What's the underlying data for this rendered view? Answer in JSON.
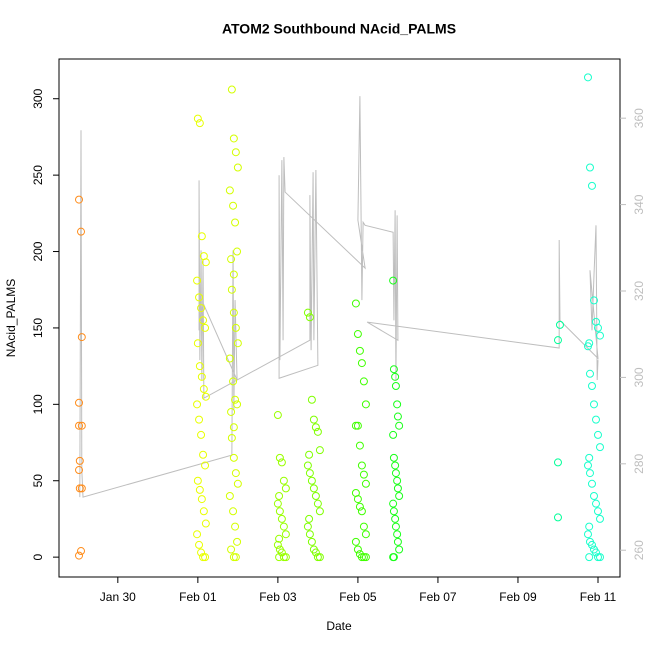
{
  "chart_data": {
    "type": "scatter",
    "title": "ATOM2 Southbound NAcid_PALMS",
    "xlabel": "Date",
    "ylabel": "NAcid_PALMS",
    "xlim": [
      28.53,
      42.55
    ],
    "ylim": [
      -13,
      326
    ],
    "y2lim": [
      253.8,
      373.7
    ],
    "xticks": [
      {
        "value": 30,
        "label": "Jan 30"
      },
      {
        "value": 32,
        "label": "Feb 01"
      },
      {
        "value": 34,
        "label": "Feb 03"
      },
      {
        "value": 36,
        "label": "Feb 05"
      },
      {
        "value": 38,
        "label": "Feb 07"
      },
      {
        "value": 40,
        "label": "Feb 09"
      },
      {
        "value": 42,
        "label": "Feb 11"
      }
    ],
    "yticks": [
      0,
      50,
      100,
      150,
      200,
      250,
      300
    ],
    "y2ticks": [
      260,
      280,
      300,
      320,
      340,
      360
    ],
    "y2color": "#bebebe",
    "series": [
      {
        "type": "line",
        "axis": "y2",
        "color": "#bebebe",
        "x": [
          29.05,
          29.08,
          29.1,
          29.13,
          32.85,
          32.88,
          32.9,
          32.93,
          32.98,
          32.13,
          32.03,
          32.03,
          32.05,
          32.08,
          32.1,
          32.13,
          32.15,
          34.8,
          34.8,
          34.83,
          34.88,
          34.9,
          34.95,
          35.0,
          34.03,
          34.03,
          34.05,
          34.1,
          34.13,
          34.15,
          34.18,
          36.18,
          36.0,
          36.05,
          36.1,
          36.13,
          36.18,
          36.88,
          36.9,
          36.93,
          36.95,
          36.98,
          37.0,
          36.23,
          41.03,
          41.03,
          41.05,
          42.0,
          41.8,
          41.85,
          41.9,
          41.95,
          41.98,
          42.0
        ],
        "values": [
          272.3,
          357.2,
          278.5,
          272.3,
          282.0,
          329.4,
          292.4,
          317.9,
          299.4,
          317.2,
          310.9,
          345.6,
          304.0,
          329.4,
          299.4,
          327.1,
          295.2,
          308.6,
          342.2,
          306.3,
          347.5,
          308.6,
          348.0,
          302.8,
          299.8,
          346.8,
          304.0,
          350.3,
          308.6,
          351.0,
          342.9,
          325.3,
          336.4,
          365.1,
          317.9,
          335.9,
          335.2,
          333.6,
          313.2,
          338.7,
          299.4,
          337.5,
          308.6,
          312.8,
          306.8,
          331.8,
          313.2,
          304.4,
          324.8,
          310.9,
          323.7,
          335.2,
          299.4,
          304.0
        ]
      },
      {
        "type": "scatter",
        "color": "#ff8c1a",
        "x": [
          29.03,
          29.08,
          29.1,
          29.03,
          29.03,
          29.1,
          29.05,
          29.03,
          29.05,
          29.1,
          29.08,
          29.03
        ],
        "values": [
          234,
          213,
          144,
          101,
          86,
          86,
          63,
          57,
          45,
          45,
          4,
          1
        ]
      },
      {
        "type": "scatter",
        "color": "#e8ff00",
        "x": [
          32.0,
          32.05,
          32.1,
          32.15,
          32.2,
          31.98,
          32.03,
          32.08,
          32.13,
          32.18,
          32.0,
          32.05,
          32.1,
          32.15,
          32.2,
          31.98,
          32.03,
          32.08,
          32.13,
          32.18,
          32.0,
          32.05,
          32.1,
          32.15,
          32.2,
          31.98,
          32.03,
          32.08,
          32.13,
          32.18
        ],
        "values": [
          287,
          284,
          210,
          197,
          193,
          181,
          170,
          163,
          155,
          150,
          140,
          125,
          118,
          110,
          105,
          100,
          90,
          80,
          67,
          60,
          50,
          44,
          38,
          30,
          22,
          15,
          8,
          3,
          0,
          0
        ]
      },
      {
        "type": "scatter",
        "color": "#d4ff00",
        "x": [
          32.85,
          32.9,
          32.95,
          33.0,
          32.8,
          32.88,
          32.93,
          32.98,
          32.83,
          32.9,
          32.85,
          32.9,
          32.95,
          33.0,
          32.8,
          32.88,
          32.93,
          32.98,
          32.83,
          32.9,
          32.85,
          32.9,
          32.95,
          33.0,
          32.8,
          32.88,
          32.93,
          32.98,
          32.83,
          32.9,
          32.95
        ],
        "values": [
          306,
          274,
          265,
          255,
          240,
          230,
          219,
          200,
          195,
          185,
          175,
          160,
          150,
          140,
          130,
          115,
          103,
          100,
          95,
          85,
          78,
          65,
          55,
          48,
          40,
          30,
          20,
          10,
          5,
          0,
          0
        ]
      },
      {
        "type": "scatter",
        "color": "#99ff00",
        "x": [
          34.0,
          34.05,
          34.1,
          34.15,
          34.2,
          34.03,
          34.0,
          34.05,
          34.1,
          34.15,
          34.2,
          34.03,
          34.0,
          34.05,
          34.1,
          34.15,
          34.2,
          34.03
        ],
        "values": [
          93,
          65,
          62,
          50,
          45,
          40,
          35,
          30,
          25,
          20,
          15,
          12,
          8,
          5,
          3,
          0,
          0,
          0
        ]
      },
      {
        "type": "scatter",
        "color": "#80ff00",
        "x": [
          34.75,
          34.8,
          34.85,
          34.9,
          34.95,
          35.0,
          35.05,
          34.78,
          34.75,
          34.8,
          34.85,
          34.9,
          34.95,
          35.0,
          35.05,
          34.78,
          34.75,
          34.8,
          34.85,
          34.9,
          34.95,
          35.0,
          35.05
        ],
        "values": [
          160,
          157,
          103,
          90,
          85,
          82,
          70,
          67,
          60,
          55,
          50,
          45,
          40,
          35,
          30,
          25,
          20,
          15,
          10,
          5,
          3,
          0,
          0
        ]
      },
      {
        "type": "scatter",
        "color": "#40ff00",
        "x": [
          35.95,
          36.0,
          36.05,
          36.1,
          36.15,
          36.2,
          35.95,
          36.0,
          36.05,
          36.1,
          36.15,
          36.2,
          35.95,
          36.0,
          36.05,
          36.1,
          36.15,
          36.2,
          35.95,
          36.0,
          36.05,
          36.1,
          36.15,
          36.2
        ],
        "values": [
          166,
          146,
          135,
          127,
          115,
          100,
          86,
          86,
          73,
          60,
          54,
          48,
          42,
          38,
          33,
          30,
          20,
          15,
          10,
          5,
          2,
          0,
          0,
          0
        ]
      },
      {
        "type": "scatter",
        "color": "#1aff1a",
        "x": [
          36.88,
          36.9,
          36.93,
          36.95,
          36.98,
          37.0,
          37.03,
          36.88,
          36.9,
          36.93,
          36.95,
          36.98,
          37.0,
          37.03,
          36.88,
          36.9,
          36.93,
          36.95,
          36.98,
          37.0,
          37.03,
          36.88,
          36.9
        ],
        "values": [
          181,
          123,
          118,
          112,
          100,
          92,
          86,
          80,
          65,
          60,
          55,
          50,
          45,
          40,
          35,
          30,
          25,
          20,
          15,
          10,
          5,
          0,
          0
        ]
      },
      {
        "type": "scatter",
        "color": "#00ff99",
        "x": [
          41.05,
          41.0,
          41.0,
          41.0
        ],
        "values": [
          152,
          142,
          62,
          26
        ]
      },
      {
        "type": "scatter",
        "color": "#1affcc",
        "x": [
          41.75,
          41.8,
          41.85,
          41.9,
          41.95,
          42.0,
          42.05,
          41.78,
          41.75,
          41.8,
          41.85,
          41.9,
          41.95,
          42.0,
          42.05,
          41.78,
          41.75,
          41.8,
          41.85,
          41.9,
          41.95,
          42.0,
          42.05,
          41.78,
          41.75,
          41.8,
          41.85,
          41.9,
          41.95,
          42.0,
          42.05,
          41.78
        ],
        "values": [
          314,
          255,
          243,
          168,
          154,
          150,
          145,
          140,
          138,
          120,
          112,
          100,
          90,
          80,
          72,
          65,
          60,
          55,
          48,
          40,
          35,
          30,
          25,
          20,
          15,
          10,
          8,
          5,
          3,
          0,
          0,
          0
        ]
      }
    ]
  }
}
